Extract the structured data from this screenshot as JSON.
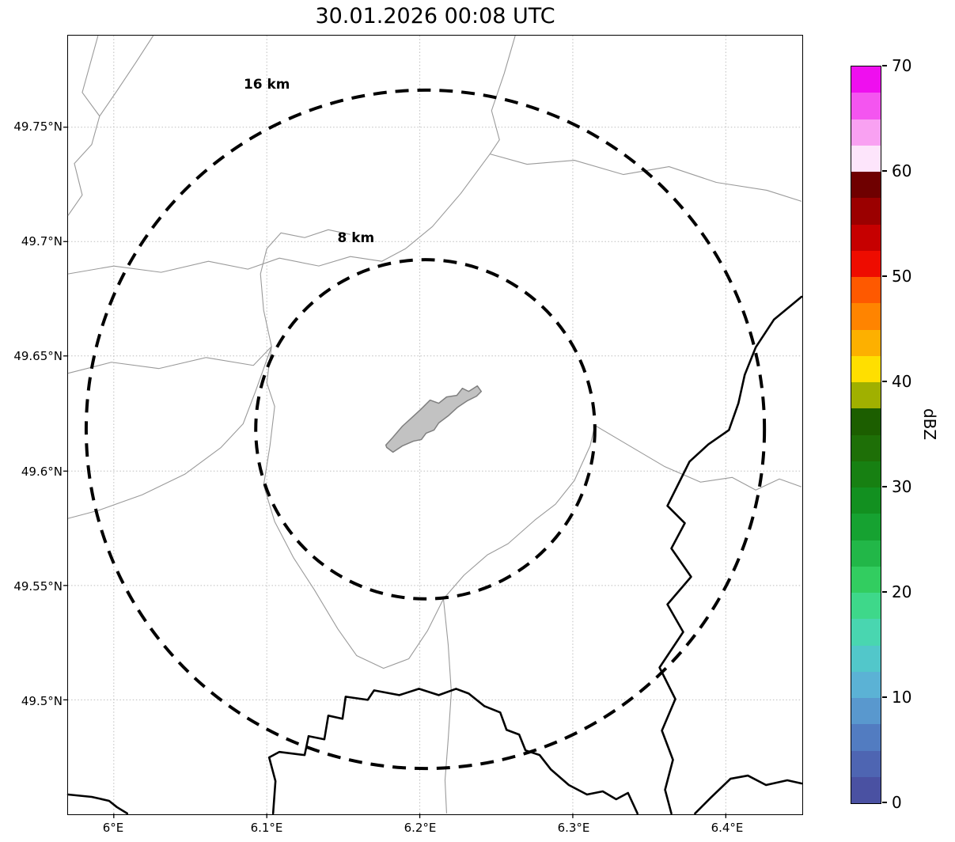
{
  "title": "30.01.2026 00:08 UTC",
  "map": {
    "x_ticks": [
      "6°E",
      "6.1°E",
      "6.2°E",
      "6.3°E",
      "6.4°E"
    ],
    "y_ticks": [
      "49.75°N",
      "49.7°N",
      "49.65°N",
      "49.6°N",
      "49.55°N",
      "49.5°N"
    ],
    "range_rings": [
      {
        "label": "16 km",
        "radius_km": 16
      },
      {
        "label": "8 km",
        "radius_km": 8
      }
    ]
  },
  "colorbar": {
    "label": "dBZ",
    "min": 0,
    "max": 70,
    "ticks": [
      "70",
      "60",
      "50",
      "40",
      "30",
      "20",
      "10",
      "0"
    ],
    "colors_top_to_bottom": [
      "#ef0fef",
      "#f455f0",
      "#f9a1f2",
      "#fde5fb",
      "#6f0000",
      "#9b0000",
      "#c60000",
      "#ee0c00",
      "#fe5900",
      "#ff8400",
      "#fdb000",
      "#ffdf00",
      "#a0b000",
      "#1c5e00",
      "#1e6f07",
      "#178012",
      "#129020",
      "#16a231",
      "#22b748",
      "#32cd60",
      "#3ed88a",
      "#49d6b0",
      "#52c7ca",
      "#5bb2d5",
      "#5998ce",
      "#527cc1",
      "#4e65b2",
      "#4a51a2"
    ]
  }
}
